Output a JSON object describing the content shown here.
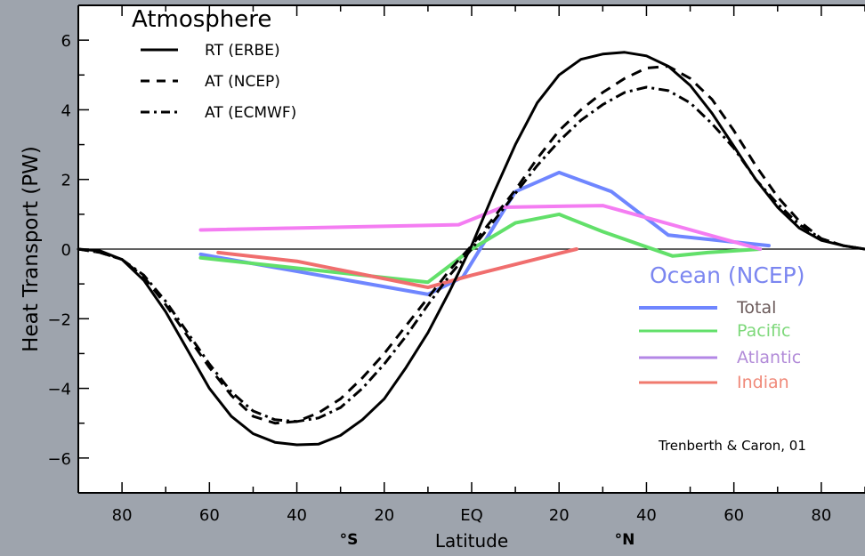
{
  "chart_data": {
    "type": "line",
    "ylabel": "Heat Transport (PW)",
    "xlabel": "Latitude",
    "x_hemisphere_labels": {
      "south": "°S",
      "north": "°N"
    },
    "xlim": [
      -90,
      90
    ],
    "ylim": [
      -7,
      7
    ],
    "x_ticks": [
      -80,
      -60,
      -40,
      -20,
      0,
      20,
      40,
      60,
      80
    ],
    "x_tick_labels": [
      "80",
      "60",
      "40",
      "20",
      "EQ",
      "20",
      "40",
      "60",
      "80"
    ],
    "y_ticks": [
      -6,
      -4,
      -2,
      0,
      2,
      4,
      6
    ],
    "y_tick_labels": [
      "−6",
      "−4",
      "−2",
      "0",
      "2",
      "4",
      "6"
    ],
    "grid": false,
    "zero_line": true,
    "annotation": "Trenberth & Caron, 01",
    "legends": {
      "atmosphere": {
        "title": "Atmosphere",
        "entries": [
          "RT (ERBE)",
          "AT (NCEP)",
          "AT (ECMWF)"
        ]
      },
      "ocean": {
        "title": "Ocean (NCEP)",
        "entries": [
          "Total",
          "Pacific",
          "Atlantic",
          "Indian"
        ]
      }
    },
    "series": [
      {
        "name": "RT (ERBE)",
        "style": "solid",
        "color": "#000000",
        "x": [
          -90,
          -85,
          -80,
          -75,
          -70,
          -65,
          -60,
          -55,
          -50,
          -45,
          -40,
          -35,
          -30,
          -25,
          -20,
          -15,
          -10,
          -5,
          0,
          5,
          10,
          15,
          20,
          25,
          30,
          35,
          40,
          45,
          50,
          55,
          60,
          65,
          70,
          75,
          80,
          85,
          90
        ],
        "y": [
          0,
          -0.05,
          -0.3,
          -0.9,
          -1.8,
          -2.9,
          -4.0,
          -4.8,
          -5.3,
          -5.55,
          -5.62,
          -5.6,
          -5.35,
          -4.9,
          -4.3,
          -3.4,
          -2.4,
          -1.2,
          0.1,
          1.6,
          3.0,
          4.2,
          5.0,
          5.45,
          5.6,
          5.65,
          5.55,
          5.25,
          4.7,
          3.9,
          2.95,
          2.0,
          1.2,
          0.6,
          0.25,
          0.1,
          0
        ]
      },
      {
        "name": "AT (NCEP)",
        "style": "dashed",
        "color": "#000000",
        "x": [
          -90,
          -85,
          -80,
          -75,
          -70,
          -65,
          -60,
          -55,
          -50,
          -45,
          -40,
          -35,
          -30,
          -25,
          -20,
          -15,
          -10,
          -5,
          0,
          5,
          10,
          15,
          20,
          25,
          30,
          35,
          40,
          45,
          50,
          55,
          60,
          65,
          70,
          75,
          80,
          85,
          90
        ],
        "y": [
          0,
          -0.1,
          -0.3,
          -0.8,
          -1.6,
          -2.5,
          -3.4,
          -4.2,
          -4.8,
          -5.0,
          -4.95,
          -4.7,
          -4.3,
          -3.7,
          -3.0,
          -2.2,
          -1.4,
          -0.6,
          0.1,
          0.9,
          1.7,
          2.6,
          3.4,
          4.0,
          4.5,
          4.9,
          5.2,
          5.25,
          4.9,
          4.3,
          3.4,
          2.4,
          1.5,
          0.8,
          0.3,
          0.1,
          0
        ]
      },
      {
        "name": "AT (ECMWF)",
        "style": "dashdot",
        "color": "#000000",
        "x": [
          -90,
          -85,
          -80,
          -75,
          -70,
          -65,
          -60,
          -55,
          -50,
          -45,
          -40,
          -35,
          -30,
          -25,
          -20,
          -15,
          -10,
          -5,
          0,
          5,
          10,
          15,
          20,
          25,
          30,
          35,
          40,
          45,
          50,
          55,
          60,
          65,
          70,
          75,
          80,
          85,
          90
        ],
        "y": [
          0,
          -0.1,
          -0.3,
          -0.75,
          -1.5,
          -2.4,
          -3.3,
          -4.1,
          -4.65,
          -4.9,
          -4.95,
          -4.85,
          -4.55,
          -4.0,
          -3.3,
          -2.5,
          -1.6,
          -0.75,
          0,
          0.8,
          1.6,
          2.4,
          3.1,
          3.7,
          4.15,
          4.5,
          4.65,
          4.55,
          4.2,
          3.6,
          2.9,
          2.0,
          1.3,
          0.7,
          0.3,
          0.1,
          0
        ]
      },
      {
        "name": "Total",
        "style": "solid",
        "color": "#6f86ff",
        "x": [
          -62,
          -10,
          -2,
          10,
          20,
          32,
          45,
          68
        ],
        "y": [
          -0.15,
          -1.3,
          -0.8,
          1.65,
          2.2,
          1.65,
          0.4,
          0.1
        ]
      },
      {
        "name": "Pacific",
        "style": "solid",
        "color": "#62e06a",
        "x": [
          -62,
          -10,
          0,
          10,
          20,
          30,
          46,
          54,
          66
        ],
        "y": [
          -0.25,
          -0.95,
          0,
          0.75,
          1.0,
          0.5,
          -0.2,
          -0.1,
          0
        ]
      },
      {
        "name": "Atlantic",
        "style": "solid",
        "color": "#f47df2",
        "x": [
          -62,
          -3,
          7,
          30,
          66
        ],
        "y": [
          0.55,
          0.7,
          1.2,
          1.25,
          0
        ]
      },
      {
        "name": "Indian",
        "style": "solid",
        "color": "#f06e6e",
        "x": [
          -58,
          -40,
          -10,
          0,
          24
        ],
        "y": [
          -0.1,
          -0.35,
          -1.1,
          -0.75,
          0
        ]
      }
    ],
    "colors": {
      "background": "#9ea4ad",
      "plot_area": "#ffffff",
      "ocean_title": "#7b86f0",
      "legend_total": "#6f86ff",
      "legend_pacific": "#62e06a",
      "legend_atlantic": "#b387e6",
      "legend_indian": "#f07a6e"
    }
  }
}
